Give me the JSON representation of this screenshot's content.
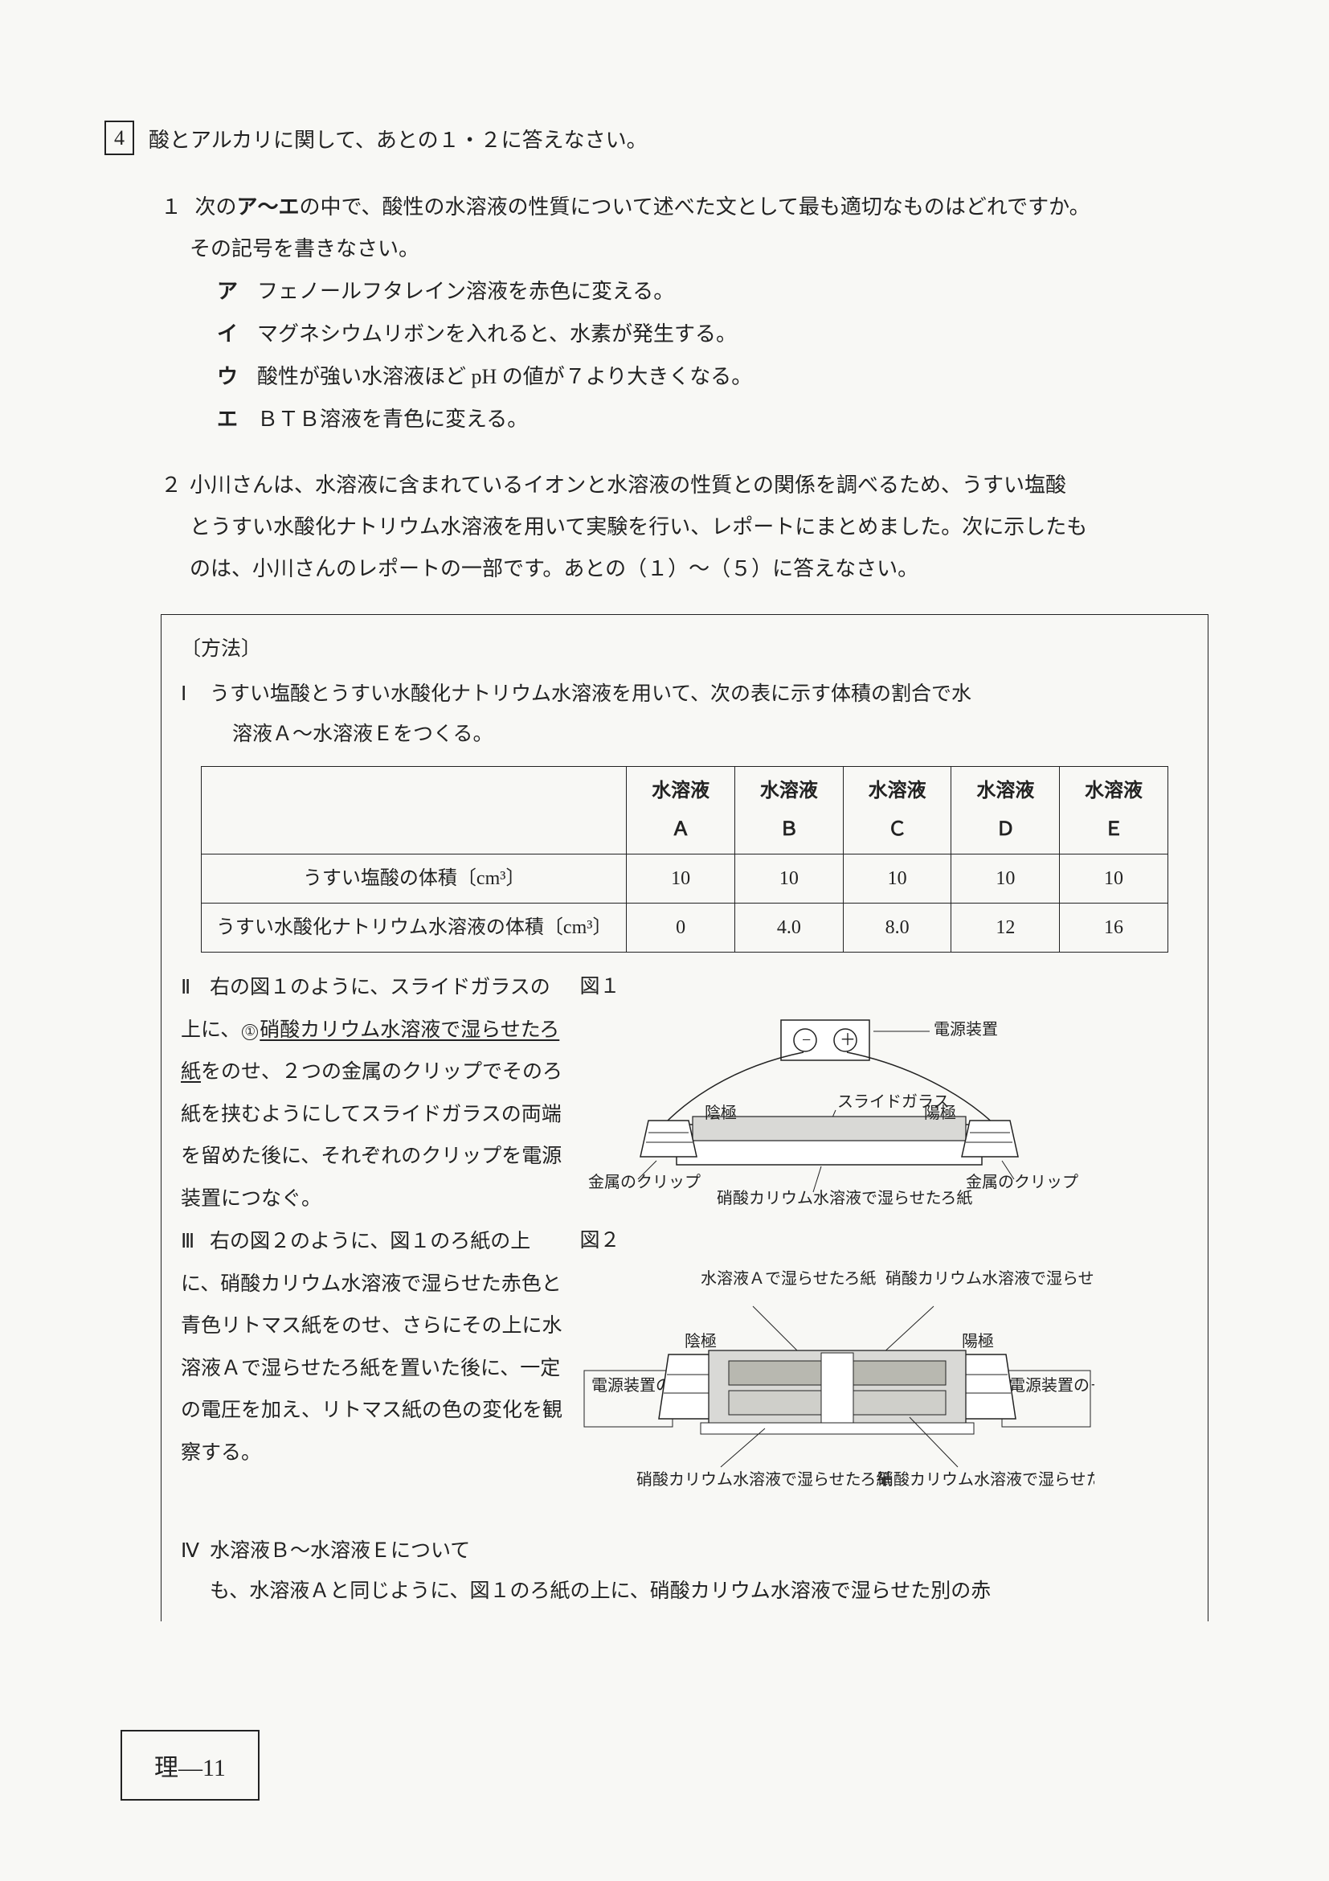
{
  "page_footer": "理―11",
  "main_q": {
    "number": "4",
    "text": "酸とアルカリに関して、あとの１・２に答えなさい。"
  },
  "sub1": {
    "num": "１",
    "text_a": "次の",
    "text_bold": "ア～エ",
    "text_b": "の中で、酸性の水溶液の性質について述べた文として最も適切なものはどれですか。",
    "text_c": "その記号を書きなさい。",
    "choices": [
      {
        "k": "ア",
        "t": "フェノールフタレイン溶液を赤色に変える。"
      },
      {
        "k": "イ",
        "t": "マグネシウムリボンを入れると、水素が発生する。"
      },
      {
        "k": "ウ",
        "t": "酸性が強い水溶液ほど pH の値が７より大きくなる。"
      },
      {
        "k": "エ",
        "t": "ＢＴＢ溶液を青色に変える。"
      }
    ]
  },
  "sub2": {
    "num": "２",
    "lines": [
      "小川さんは、水溶液に含まれているイオンと水溶液の性質との関係を調べるため、うすい塩酸",
      "とうすい水酸化ナトリウム水溶液を用いて実験を行い、レポートにまとめました。次に示したも",
      "のは、小川さんのレポートの一部です。あとの（１）～（５）に答えなさい。"
    ]
  },
  "method": {
    "title": "〔方法〕",
    "I": {
      "r": "Ⅰ",
      "l1": "うすい塩酸とうすい水酸化ナトリウム水溶液を用いて、次の表に示す体積の割合で水",
      "l2": "溶液Ａ～水溶液Ｅをつくる。"
    },
    "table": {
      "cols": [
        "",
        "水溶液\nＡ",
        "水溶液\nＢ",
        "水溶液\nＣ",
        "水溶液\nＤ",
        "水溶液\nＥ"
      ],
      "rows": [
        {
          "h": "うすい塩酸の体積〔cm³〕",
          "v": [
            "10",
            "10",
            "10",
            "10",
            "10"
          ]
        },
        {
          "h": "うすい水酸化ナトリウム水溶液の体積〔cm³〕",
          "v": [
            "0",
            "4.0",
            "8.0",
            "12",
            "16"
          ]
        }
      ]
    },
    "II": {
      "r": "Ⅱ",
      "text_parts": {
        "a": "右の図１のように、スライドガラスの上に、",
        "circ": "①",
        "u": "硝酸カリウム水溶液で湿らせたろ紙",
        "b": "をのせ、２つの金属のクリップでそのろ紙を挟むようにしてスライドガラスの両端を留めた後に、それぞれのクリップを電源装置につなぐ。"
      }
    },
    "III": {
      "r": "Ⅲ",
      "text": "右の図２のように、図１のろ紙の上に、硝酸カリウム水溶液で湿らせた赤色と青色リトマス紙をのせ、さらにその上に水溶液Ａで湿らせたろ紙を置いた後に、一定の電圧を加え、リトマス紙の色の変化を観察する。"
    },
    "IV": {
      "r": "Ⅳ",
      "l1": "水溶液Ｂ～水溶液Ｅについて",
      "l2": "も、水溶液Ａと同じように、図１のろ紙の上に、硝酸カリウム水溶液で湿らせた別の赤"
    },
    "fig1": {
      "label": "図１",
      "power": "電源装置",
      "minus": "−",
      "plus": "＋",
      "slide": "スライドガラス",
      "cathode": "陰極",
      "anode": "陽極",
      "clipL": "金属のクリップ",
      "clipR": "金属のクリップ",
      "paper": "硝酸カリウム水溶液で湿らせたろ紙"
    },
    "fig2": {
      "label": "図２",
      "topL": "水溶液Ａで\n湿らせたろ紙",
      "topR": "硝酸カリウム水溶液で\n湿らせた赤色リトマス紙",
      "cathode": "陰極",
      "anode": "陽極",
      "leftBox": "電源装置\nの−極へ",
      "rightBox": "電源装置\nの＋極へ",
      "botL": "硝酸カリウム水溶液で\n湿らせたろ紙",
      "botR": "硝酸カリウム水溶液で\n湿らせた青色リトマス紙"
    }
  },
  "colors": {
    "ink": "#222222",
    "paper_bg": "#f8f8f5",
    "fig_fill": "#ffffff",
    "fig_grey": "#d9d9d6",
    "fig_grey2": "#c8c8c4",
    "litmus_red": "#b8b8b0",
    "litmus_blue": "#cfcfca"
  }
}
